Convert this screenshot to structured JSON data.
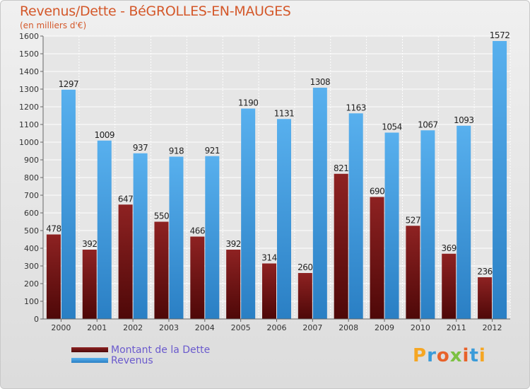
{
  "title": "Revenus/Dette - BéGROLLES-EN-MAUGES",
  "subtitle": "(en milliers d'€)",
  "brand": {
    "letters": [
      "P",
      "r",
      "o",
      "x",
      "i",
      "t",
      "i"
    ],
    "colors": [
      "#f5a623",
      "#3a9bd9",
      "#e8622a",
      "#7cc142",
      "#e8622a",
      "#3a9bd9",
      "#f5a623"
    ]
  },
  "colors": {
    "debt": "#7a1616",
    "revenue": "#3d9be0"
  },
  "chart_data": {
    "type": "bar",
    "categories": [
      "2000",
      "2001",
      "2002",
      "2003",
      "2004",
      "2005",
      "2006",
      "2007",
      "2008",
      "2009",
      "2010",
      "2011",
      "2012"
    ],
    "series": [
      {
        "name": "Montant de la Dette",
        "values": [
          478,
          392,
          647,
          550,
          466,
          392,
          314,
          260,
          821,
          690,
          527,
          369,
          236
        ]
      },
      {
        "name": "Revenus",
        "values": [
          1297,
          1009,
          937,
          918,
          921,
          1190,
          1131,
          1308,
          1163,
          1054,
          1067,
          1093,
          1572
        ]
      }
    ],
    "ylim": [
      0,
      1600
    ],
    "yticks": [
      0,
      100,
      200,
      300,
      400,
      500,
      600,
      700,
      800,
      900,
      1000,
      1100,
      1200,
      1300,
      1400,
      1500,
      1600
    ],
    "grid": true,
    "legend": "bottom-left"
  }
}
